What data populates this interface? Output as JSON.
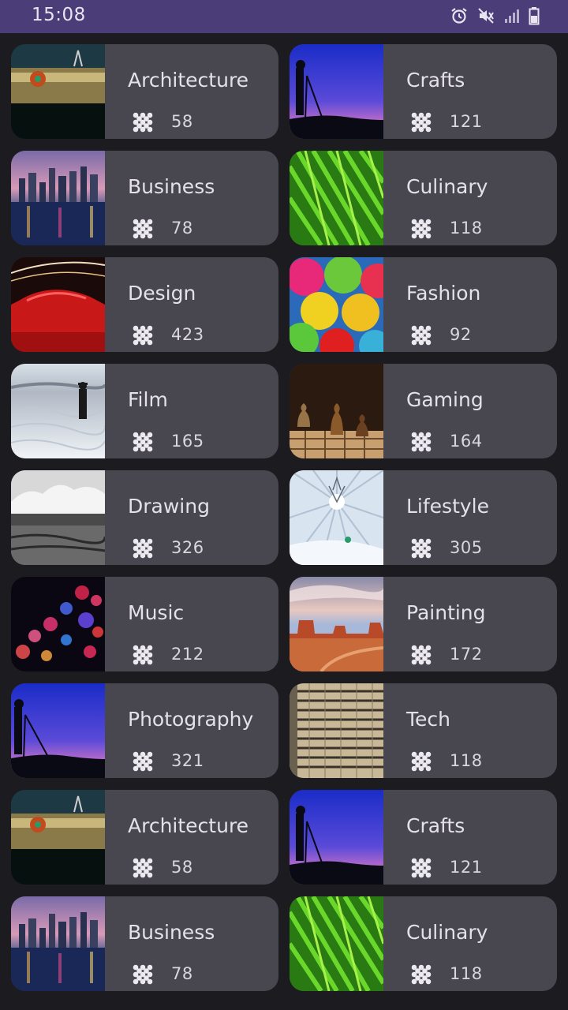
{
  "status_bar": {
    "time": "15:08",
    "icons": [
      "alarm-icon",
      "mute-icon",
      "signal-icon",
      "battery-icon"
    ]
  },
  "categories": [
    {
      "title": "Architecture",
      "count": "58",
      "image": "architecture-photo"
    },
    {
      "title": "Crafts",
      "count": "121",
      "image": "crafts-photo"
    },
    {
      "title": "Business",
      "count": "78",
      "image": "business-photo"
    },
    {
      "title": "Culinary",
      "count": "118",
      "image": "culinary-photo"
    },
    {
      "title": "Design",
      "count": "423",
      "image": "design-photo"
    },
    {
      "title": "Fashion",
      "count": "92",
      "image": "fashion-photo"
    },
    {
      "title": "Film",
      "count": "165",
      "image": "film-photo"
    },
    {
      "title": "Gaming",
      "count": "164",
      "image": "gaming-photo"
    },
    {
      "title": "Drawing",
      "count": "326",
      "image": "drawing-photo"
    },
    {
      "title": "Lifestyle",
      "count": "305",
      "image": "lifestyle-photo"
    },
    {
      "title": "Music",
      "count": "212",
      "image": "music-photo"
    },
    {
      "title": "Painting",
      "count": "172",
      "image": "painting-photo"
    },
    {
      "title": "Photography",
      "count": "321",
      "image": "photography-photo"
    },
    {
      "title": "Tech",
      "count": "118",
      "image": "tech-photo"
    },
    {
      "title": "Architecture",
      "count": "58",
      "image": "architecture-photo"
    },
    {
      "title": "Crafts",
      "count": "121",
      "image": "crafts-photo"
    },
    {
      "title": "Business",
      "count": "78",
      "image": "business-photo"
    },
    {
      "title": "Culinary",
      "count": "118",
      "image": "culinary-photo"
    }
  ],
  "colors": {
    "status_bar": "#4a3d78",
    "background": "#1c1b1f",
    "card": "#48464e",
    "text": "#e4e1e8"
  }
}
